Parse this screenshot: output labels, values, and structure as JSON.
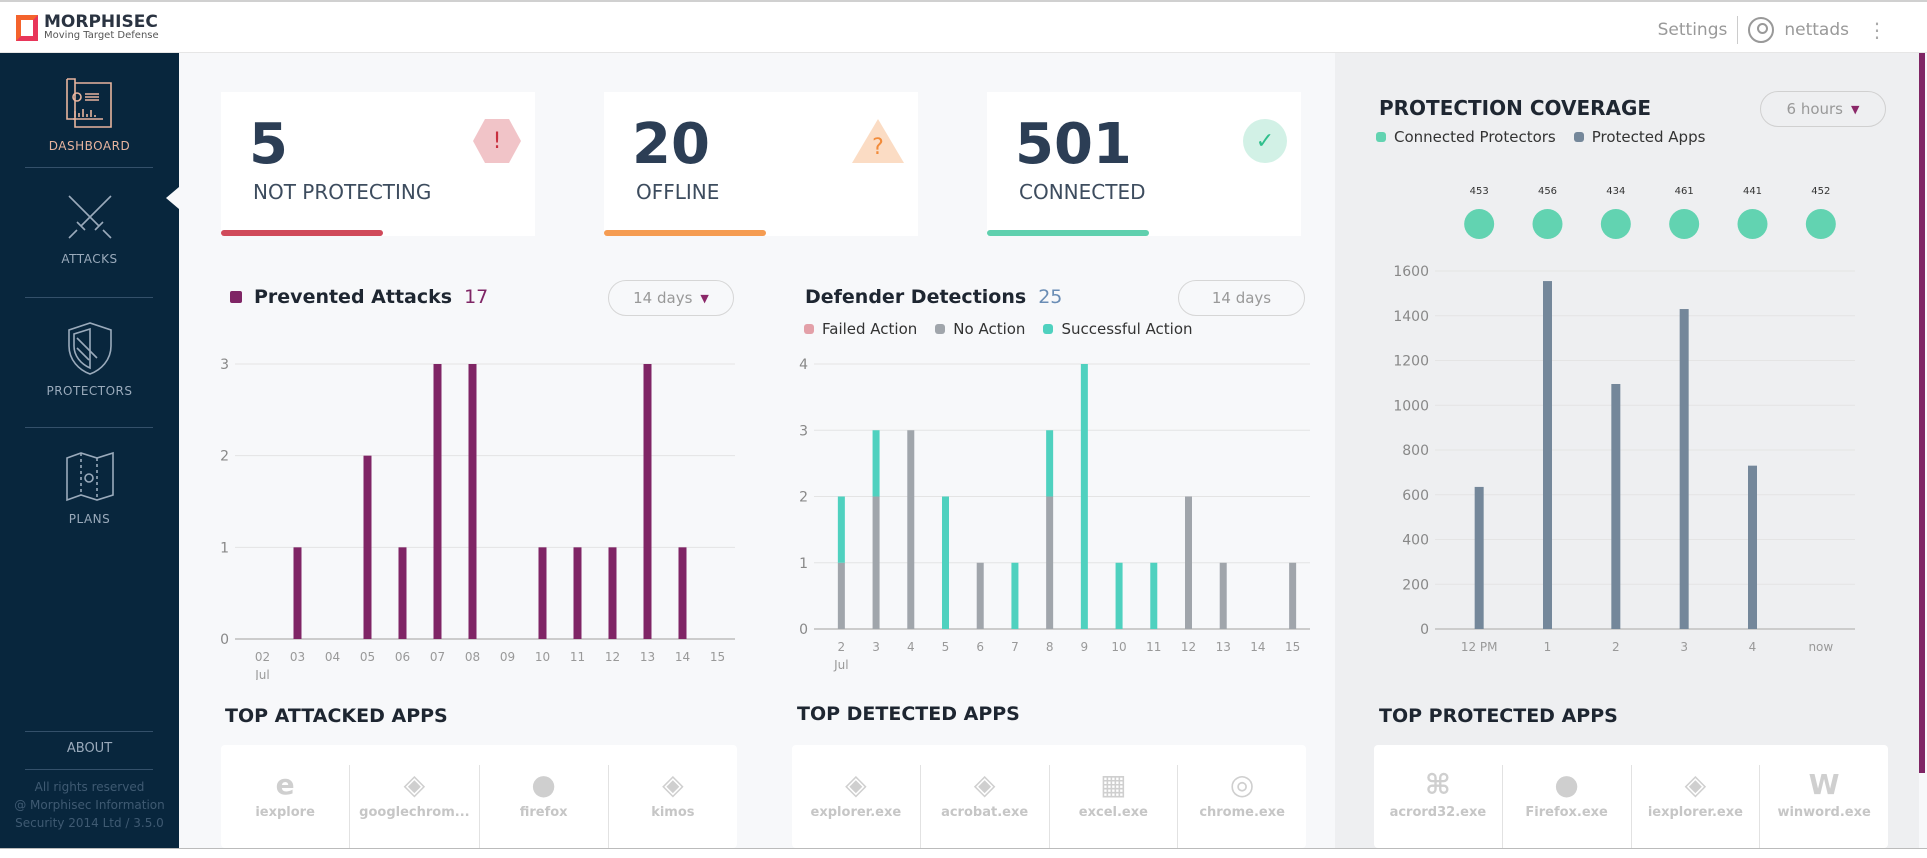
{
  "header": {
    "brand": "MORPHISEC",
    "tagline": "Moving Target Defense",
    "settings": "Settings",
    "user": "nettads"
  },
  "sidebar": {
    "items": [
      {
        "label": "DASHBOARD",
        "icon": "dashboard-map-icon",
        "active": true
      },
      {
        "label": "ATTACKS",
        "icon": "crossed-swords-icon"
      },
      {
        "label": "PROTECTORS",
        "icon": "shield-icon"
      },
      {
        "label": "PLANS",
        "icon": "map-icon"
      }
    ],
    "about": "ABOUT",
    "copyright": [
      "All rights reserved",
      "@ Morphisec Information",
      "Security 2014 Ltd / 3.5.0"
    ]
  },
  "cards": [
    {
      "value": "5",
      "label": "NOT PROTECTING",
      "color": "#d04a5a",
      "icon": "exclamation-hexagon-icon"
    },
    {
      "value": "20",
      "label": "OFFLINE",
      "color": "#f59c52",
      "icon": "question-triangle-icon"
    },
    {
      "value": "501",
      "label": "CONNECTED",
      "color": "#5fd0ae",
      "icon": "check-circle-icon"
    }
  ],
  "prevented": {
    "title": "Prevented Attacks",
    "count": "17",
    "range": "14 days"
  },
  "defender": {
    "title": "Defender Detections",
    "count": "25",
    "range": "14 days",
    "legend": [
      "Failed Action",
      "No Action",
      "Successful Action"
    ]
  },
  "coverage": {
    "title": "PROTECTION COVERAGE",
    "range": "6 hours",
    "legend": [
      "Connected Protectors",
      "Protected Apps"
    ]
  },
  "chart_data": [
    {
      "type": "bar",
      "name": "prevented-attacks",
      "categories": [
        "02",
        "03",
        "04",
        "05",
        "06",
        "07",
        "08",
        "09",
        "10",
        "11",
        "12",
        "13",
        "14",
        "15"
      ],
      "x_sublabel": "Jul",
      "values": [
        0,
        1,
        0,
        2,
        1,
        3,
        3,
        0,
        1,
        1,
        1,
        3,
        1,
        0
      ],
      "ylim": [
        0,
        3
      ],
      "yticks": [
        "0",
        "1",
        "2",
        "3"
      ],
      "color": "#7f2565",
      "grid": true
    },
    {
      "type": "bar",
      "stacked": true,
      "name": "defender-detections",
      "categories": [
        "2",
        "3",
        "4",
        "5",
        "6",
        "7",
        "8",
        "9",
        "10",
        "11",
        "12",
        "13",
        "14",
        "15"
      ],
      "x_sublabel": "Jul",
      "series": [
        {
          "name": "Failed Action",
          "color": "#e3a0a8",
          "values": [
            0,
            0,
            0,
            0,
            0,
            0,
            0,
            0,
            0,
            0,
            0,
            0,
            0,
            0
          ]
        },
        {
          "name": "No Action",
          "color": "#a0a5ab",
          "values": [
            1,
            2,
            3,
            0,
            1,
            0,
            2,
            0,
            0,
            0,
            2,
            1,
            0,
            1
          ]
        },
        {
          "name": "Successful Action",
          "color": "#4fd1bf",
          "values": [
            1,
            1,
            0,
            2,
            0,
            1,
            1,
            4,
            1,
            1,
            0,
            0,
            0,
            0
          ]
        }
      ],
      "ylim": [
        0,
        4
      ],
      "yticks": [
        "0",
        "1",
        "2",
        "3",
        "4"
      ],
      "grid": true
    },
    {
      "type": "bar",
      "name": "protection-coverage",
      "categories": [
        "12 PM",
        "1",
        "2",
        "3",
        "4",
        "now"
      ],
      "series": [
        {
          "name": "Connected Protectors",
          "color": "#62d3b1",
          "values": [
            453,
            456,
            434,
            461,
            441,
            452
          ]
        },
        {
          "name": "Protected Apps",
          "color": "#74879a",
          "values": [
            635,
            1555,
            1095,
            1430,
            730,
            0
          ]
        }
      ],
      "ylim": [
        0,
        1600
      ],
      "yticks": [
        "0",
        "200",
        "400",
        "600",
        "800",
        "1000",
        "1200",
        "1400",
        "1600"
      ],
      "grid": true
    }
  ],
  "top_attacked": {
    "title": "TOP ATTACKED APPS",
    "apps": [
      {
        "name": "iexplore",
        "icon": "ie-icon"
      },
      {
        "name": "googlechrom...",
        "icon": "layers-icon"
      },
      {
        "name": "firefox",
        "icon": "firefox-icon"
      },
      {
        "name": "kimos",
        "icon": "layers-icon"
      }
    ]
  },
  "top_detected": {
    "title": "TOP DETECTED APPS",
    "apps": [
      {
        "name": "explorer.exe",
        "icon": "layers-icon"
      },
      {
        "name": "acrobat.exe",
        "icon": "layers-icon"
      },
      {
        "name": "excel.exe",
        "icon": "excel-icon"
      },
      {
        "name": "chrome.exe",
        "icon": "chrome-icon"
      }
    ]
  },
  "top_protected": {
    "title": "TOP PROTECTED APPS",
    "apps": [
      {
        "name": "acrord32.exe",
        "icon": "acrobat-icon"
      },
      {
        "name": "Firefox.exe",
        "icon": "firefox-icon"
      },
      {
        "name": "iexplorer.exe",
        "icon": "layers-icon"
      },
      {
        "name": "winword.exe",
        "icon": "word-icon"
      }
    ]
  }
}
